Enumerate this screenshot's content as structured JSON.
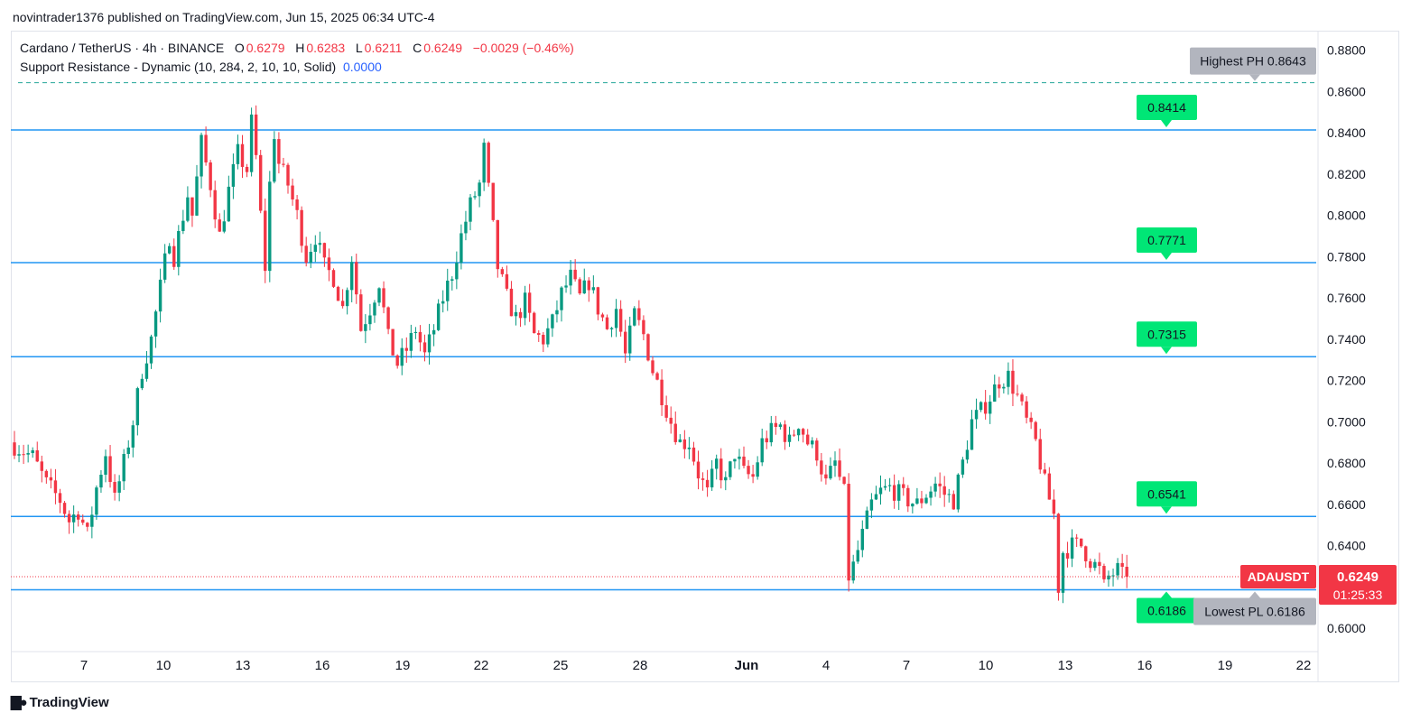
{
  "header": {
    "published": "novintrader1376 published on TradingView.com, Jun 15, 2025 06:34 UTC-4"
  },
  "legend": {
    "symbol": "Cardano / TetherUS · 4h · BINANCE",
    "o_label": "O",
    "o": "0.6279",
    "h_label": "H",
    "h": "0.6283",
    "l_label": "L",
    "l": "0.6211",
    "c_label": "C",
    "c": "0.6249",
    "change": "−0.0029 (−0.46%)",
    "indicator": "Support Resistance - Dynamic (10, 284, 2, 10, 10, Solid)",
    "indicator_value": "0.0000"
  },
  "footer": {
    "brand": "TradingView"
  },
  "colors": {
    "up": "#089981",
    "down": "#f23645",
    "level": "#2196f3",
    "label_green": "#00e676",
    "label_gray": "#b2b5be"
  },
  "chart_data": {
    "type": "candlestick",
    "symbol": "ADAUSDT",
    "ylim": [
      0.5895,
      0.8895
    ],
    "y_ticks": [
      "0.6000",
      "0.6200",
      "0.6400",
      "0.6600",
      "0.6800",
      "0.7000",
      "0.7200",
      "0.7400",
      "0.7600",
      "0.7800",
      "0.8000",
      "0.8200",
      "0.8400",
      "0.8600",
      "0.8800"
    ],
    "x_ticks": [
      "7",
      "10",
      "13",
      "16",
      "19",
      "22",
      "25",
      "28",
      "Jun",
      "4",
      "7",
      "10",
      "13",
      "16",
      "19",
      "22"
    ],
    "levels": [
      {
        "value": 0.8414,
        "label": "0.8414"
      },
      {
        "value": 0.7771,
        "label": "0.7771"
      },
      {
        "value": 0.7315,
        "label": "0.7315"
      },
      {
        "value": 0.6541,
        "label": "0.6541"
      },
      {
        "value": 0.6186,
        "label": "0.6186"
      }
    ],
    "highest_ph": {
      "value": 0.8643,
      "label": "Highest PH 0.8643"
    },
    "lowest_pl": {
      "value": 0.6186,
      "label": "Lowest PL 0.6186"
    },
    "last_price": {
      "value": 0.6249,
      "label": "0.6249",
      "countdown": "01:25:33",
      "symbol_label": "ADAUSDT"
    },
    "price_path": [
      [
        0,
        0.69
      ],
      [
        5,
        0.683
      ],
      [
        8,
        0.67
      ],
      [
        11,
        0.662
      ],
      [
        13,
        0.652
      ],
      [
        15,
        0.657
      ],
      [
        17,
        0.645
      ],
      [
        19,
        0.668
      ],
      [
        21,
        0.685
      ],
      [
        23,
        0.662
      ],
      [
        25,
        0.68
      ],
      [
        27,
        0.7
      ],
      [
        29,
        0.725
      ],
      [
        31,
        0.74
      ],
      [
        33,
        0.765
      ],
      [
        35,
        0.79
      ],
      [
        36,
        0.78
      ],
      [
        37,
        0.79
      ],
      [
        39,
        0.81
      ],
      [
        40,
        0.8
      ],
      [
        42,
        0.835
      ],
      [
        44,
        0.815
      ],
      [
        46,
        0.79
      ],
      [
        48,
        0.812
      ],
      [
        50,
        0.83
      ],
      [
        52,
        0.822
      ],
      [
        53,
        0.845
      ],
      [
        54,
        0.828
      ],
      [
        55,
        0.8
      ],
      [
        56,
        0.775
      ],
      [
        57,
        0.815
      ],
      [
        58,
        0.84
      ],
      [
        59,
        0.825
      ],
      [
        61,
        0.815
      ],
      [
        63,
        0.8
      ],
      [
        65,
        0.78
      ],
      [
        67,
        0.79
      ],
      [
        69,
        0.775
      ],
      [
        71,
        0.77
      ],
      [
        73,
        0.755
      ],
      [
        75,
        0.78
      ],
      [
        77,
        0.745
      ],
      [
        79,
        0.755
      ],
      [
        81,
        0.768
      ],
      [
        83,
        0.74
      ],
      [
        85,
        0.728
      ],
      [
        87,
        0.735
      ],
      [
        89,
        0.745
      ],
      [
        91,
        0.732
      ],
      [
        93,
        0.745
      ],
      [
        95,
        0.76
      ],
      [
        97,
        0.772
      ],
      [
        99,
        0.79
      ],
      [
        101,
        0.805
      ],
      [
        103,
        0.815
      ],
      [
        104,
        0.832
      ],
      [
        105,
        0.812
      ],
      [
        107,
        0.775
      ],
      [
        109,
        0.76
      ],
      [
        111,
        0.75
      ],
      [
        113,
        0.758
      ],
      [
        115,
        0.742
      ],
      [
        117,
        0.74
      ],
      [
        119,
        0.748
      ],
      [
        121,
        0.762
      ],
      [
        123,
        0.77
      ],
      [
        125,
        0.76
      ],
      [
        127,
        0.768
      ],
      [
        129,
        0.755
      ],
      [
        131,
        0.745
      ],
      [
        133,
        0.755
      ],
      [
        135,
        0.732
      ],
      [
        137,
        0.752
      ],
      [
        139,
        0.742
      ],
      [
        141,
        0.725
      ],
      [
        143,
        0.713
      ],
      [
        145,
        0.7
      ],
      [
        147,
        0.69
      ],
      [
        149,
        0.69
      ],
      [
        151,
        0.675
      ],
      [
        153,
        0.665
      ],
      [
        155,
        0.68
      ],
      [
        157,
        0.67
      ],
      [
        159,
        0.685
      ],
      [
        161,
        0.675
      ],
      [
        163,
        0.673
      ],
      [
        165,
        0.69
      ],
      [
        167,
        0.695
      ],
      [
        169,
        0.698
      ],
      [
        171,
        0.69
      ],
      [
        173,
        0.7
      ],
      [
        175,
        0.69
      ],
      [
        177,
        0.685
      ],
      [
        179,
        0.67
      ],
      [
        181,
        0.68
      ],
      [
        183,
        0.665
      ],
      [
        184,
        0.625
      ],
      [
        185,
        0.63
      ],
      [
        187,
        0.645
      ],
      [
        189,
        0.66
      ],
      [
        191,
        0.666
      ],
      [
        193,
        0.668
      ],
      [
        195,
        0.665
      ],
      [
        197,
        0.662
      ],
      [
        199,
        0.66
      ],
      [
        201,
        0.665
      ],
      [
        203,
        0.67
      ],
      [
        205,
        0.665
      ],
      [
        207,
        0.662
      ],
      [
        209,
        0.68
      ],
      [
        211,
        0.7
      ],
      [
        213,
        0.705
      ],
      [
        215,
        0.712
      ],
      [
        217,
        0.72
      ],
      [
        219,
        0.722
      ],
      [
        221,
        0.712
      ],
      [
        223,
        0.7
      ],
      [
        225,
        0.69
      ],
      [
        227,
        0.67
      ],
      [
        229,
        0.655
      ],
      [
        230,
        0.62
      ],
      [
        231,
        0.637
      ],
      [
        233,
        0.64
      ],
      [
        235,
        0.64
      ],
      [
        237,
        0.633
      ],
      [
        239,
        0.628
      ],
      [
        240,
        0.62
      ],
      [
        241,
        0.625
      ],
      [
        243,
        0.628
      ],
      [
        244,
        0.625
      ]
    ]
  }
}
